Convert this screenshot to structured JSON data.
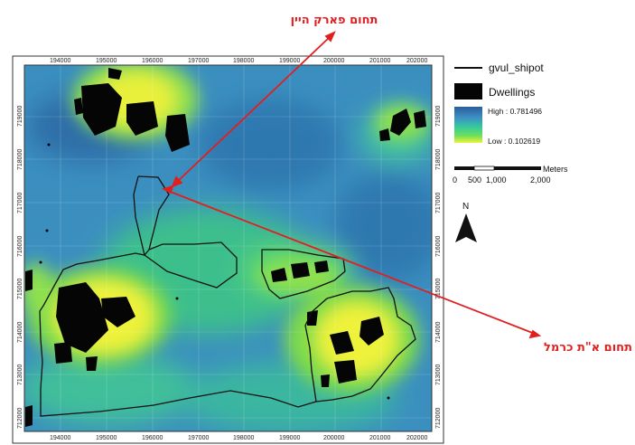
{
  "annotations": {
    "top_label": "תחום פארק היין",
    "right_label": "תחום א\"ת כרמל"
  },
  "axes": {
    "x_ticks": [
      "194000",
      "195000",
      "196000",
      "197000",
      "198000",
      "199000",
      "200000",
      "201000",
      "202000"
    ],
    "y_ticks": [
      "719000",
      "718000",
      "717000",
      "716000",
      "715000",
      "714000",
      "713000",
      "712000"
    ]
  },
  "legend": {
    "boundary_label": "gvul_shipot",
    "dwellings_label": "Dwellings",
    "high_label": "High : 0.781496",
    "low_label": "Low : 0.102619",
    "ramp_colors": [
      "#2a5d9c",
      "#3f8fc4",
      "#34c8a0",
      "#6ee05a",
      "#f2f23c"
    ]
  },
  "scalebar": {
    "ticks": [
      "0",
      "500",
      "1,000",
      "2,000"
    ],
    "unit": "Meters"
  },
  "north": {
    "label": "N",
    "icon": "north-arrow-icon"
  },
  "colors": {
    "annotation": "#e02020",
    "frame": "#333333"
  }
}
